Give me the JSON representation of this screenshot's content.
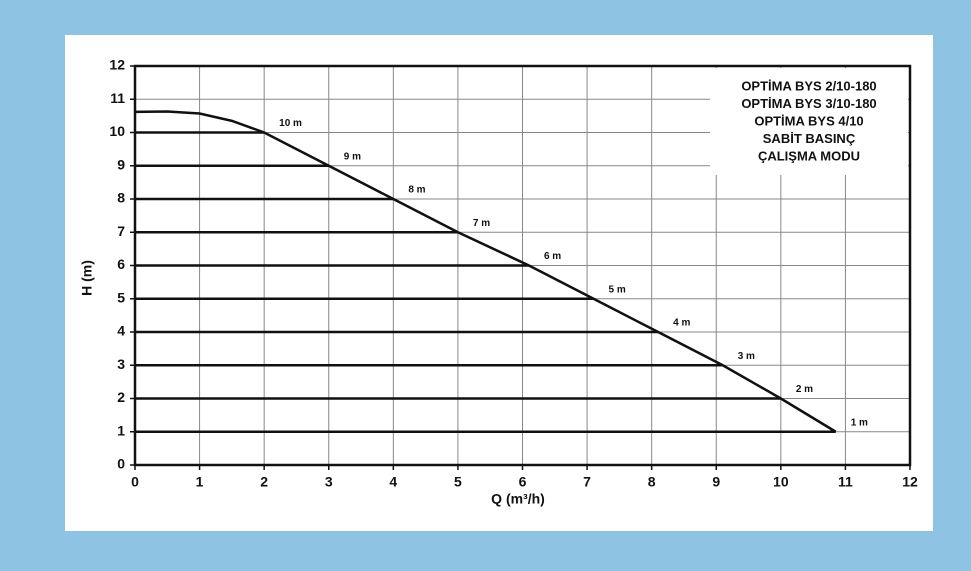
{
  "chart_data": {
    "type": "line",
    "xlabel": "Q (m³/h)",
    "ylabel": "H (m)",
    "annotation": [
      "OPTİMA BYS 2/10-180",
      "OPTİMA BYS 3/10-180",
      "OPTİMA BYS 4/10",
      "SABİT BASINÇ",
      "ÇALIŞMA MODU"
    ],
    "xlim": [
      0,
      12
    ],
    "ylim": [
      0,
      12
    ],
    "xticks": [
      0,
      1,
      2,
      3,
      4,
      5,
      6,
      7,
      8,
      9,
      10,
      11,
      12
    ],
    "yticks": [
      0,
      1,
      2,
      3,
      4,
      5,
      6,
      7,
      8,
      9,
      10,
      11,
      12
    ],
    "grid": true,
    "color": "#111111",
    "envelope": {
      "x": [
        0,
        0.5,
        1,
        1.5,
        2,
        3,
        4,
        5,
        6.1,
        7.1,
        8.1,
        9.1,
        10,
        10.85
      ],
      "values": [
        10.62,
        10.63,
        10.57,
        10.35,
        10,
        9,
        8,
        7,
        6,
        5,
        4,
        3,
        2,
        1
      ]
    },
    "series": [
      {
        "name": "10 m",
        "x": [
          0,
          2
        ],
        "values": [
          10,
          10
        ]
      },
      {
        "name": "9 m",
        "x": [
          0,
          3
        ],
        "values": [
          9,
          9
        ]
      },
      {
        "name": "8 m",
        "x": [
          0,
          4
        ],
        "values": [
          8,
          8
        ]
      },
      {
        "name": "7 m",
        "x": [
          0,
          5
        ],
        "values": [
          7,
          7
        ]
      },
      {
        "name": "6 m",
        "x": [
          0,
          6.1
        ],
        "values": [
          6,
          6
        ]
      },
      {
        "name": "5 m",
        "x": [
          0,
          7.1
        ],
        "values": [
          5,
          5
        ]
      },
      {
        "name": "4 m",
        "x": [
          0,
          8.1
        ],
        "values": [
          4,
          4
        ]
      },
      {
        "name": "3 m",
        "x": [
          0,
          9.1
        ],
        "values": [
          3,
          3
        ]
      },
      {
        "name": "2 m",
        "x": [
          0,
          10
        ],
        "values": [
          2,
          2
        ]
      },
      {
        "name": "1 m",
        "x": [
          0,
          10.85
        ],
        "values": [
          1,
          1
        ]
      }
    ]
  }
}
